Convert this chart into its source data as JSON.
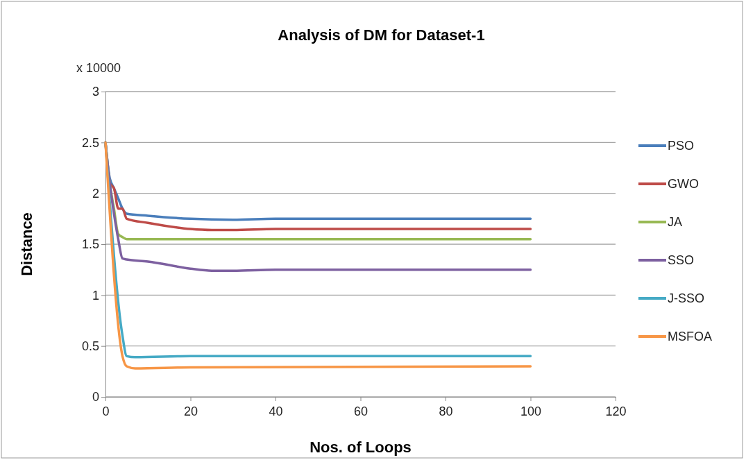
{
  "chart_data": {
    "type": "line",
    "title": "Analysis of DM for Dataset-1",
    "xlabel": "Nos. of Loops",
    "ylabel": "Distance",
    "annotations": [
      "x 10000"
    ],
    "xlim": [
      0,
      120
    ],
    "xticks": [
      0,
      20,
      40,
      60,
      80,
      100,
      120
    ],
    "ylim": [
      0,
      3
    ],
    "yticks": [
      0,
      0.5,
      1,
      1.5,
      2,
      2.5,
      3
    ],
    "grid": "y",
    "legend": "right",
    "marker": "none",
    "line_style": "solid",
    "series": [
      {
        "name": "PSO",
        "color": "#4a7ebb",
        "x": [
          0,
          1,
          2,
          3,
          4,
          5,
          10,
          20,
          30,
          40,
          100
        ],
        "values": [
          2.5,
          2.15,
          2.05,
          1.95,
          1.85,
          1.8,
          1.78,
          1.75,
          1.74,
          1.75,
          1.75
        ]
      },
      {
        "name": "GWO",
        "color": "#be4b48",
        "x": [
          0,
          1,
          2,
          3,
          4,
          5,
          10,
          20,
          25,
          30,
          40,
          100
        ],
        "values": [
          2.5,
          2.1,
          2.05,
          1.85,
          1.85,
          1.75,
          1.71,
          1.65,
          1.64,
          1.64,
          1.65,
          1.65
        ]
      },
      {
        "name": "JA",
        "color": "#98b954",
        "x": [
          0,
          1,
          2,
          3,
          4,
          5,
          10,
          100
        ],
        "values": [
          2.5,
          2.1,
          1.85,
          1.6,
          1.57,
          1.55,
          1.55,
          1.55
        ]
      },
      {
        "name": "SSO",
        "color": "#7d60a0",
        "x": [
          0,
          1,
          2,
          3,
          4,
          5,
          10,
          20,
          25,
          30,
          40,
          100
        ],
        "values": [
          2.5,
          2.1,
          1.8,
          1.55,
          1.36,
          1.35,
          1.33,
          1.26,
          1.24,
          1.24,
          1.25,
          1.25
        ]
      },
      {
        "name": "J-SSO",
        "color": "#46aac5",
        "x": [
          0,
          4,
          5,
          7,
          20,
          100
        ],
        "values": [
          2.5,
          0.6,
          0.4,
          0.39,
          0.4,
          0.4
        ]
      },
      {
        "name": "MSFOA",
        "color": "#f79646",
        "x": [
          0,
          4,
          5,
          7,
          20,
          100
        ],
        "values": [
          2.5,
          0.4,
          0.3,
          0.28,
          0.29,
          0.3
        ]
      }
    ]
  }
}
